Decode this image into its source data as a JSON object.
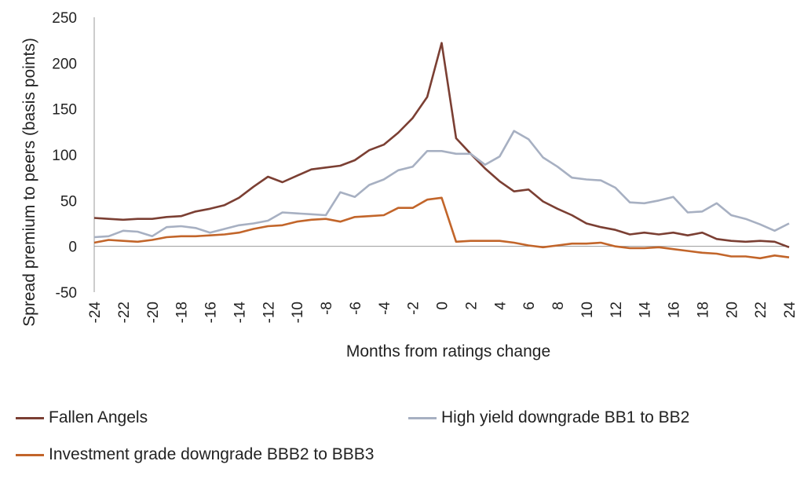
{
  "chart_data": {
    "type": "line",
    "xlabel": "Months from ratings change",
    "ylabel": "Spread premium to peers (basis points)",
    "xlim": [
      -24,
      24
    ],
    "ylim": [
      -50,
      250
    ],
    "yticks": [
      -50,
      0,
      50,
      100,
      150,
      200,
      250
    ],
    "xticks": [
      -24,
      -22,
      -20,
      -18,
      -16,
      -14,
      -12,
      -10,
      -8,
      -6,
      -4,
      -2,
      0,
      2,
      4,
      6,
      8,
      10,
      12,
      14,
      16,
      18,
      20,
      22,
      24
    ],
    "grid": false,
    "legend_position": "bottom",
    "x": [
      -24,
      -23,
      -22,
      -21,
      -20,
      -19,
      -18,
      -17,
      -16,
      -15,
      -14,
      -13,
      -12,
      -11,
      -10,
      -9,
      -8,
      -7,
      -6,
      -5,
      -4,
      -3,
      -2,
      -1,
      0,
      1,
      2,
      3,
      4,
      5,
      6,
      7,
      8,
      9,
      10,
      11,
      12,
      13,
      14,
      15,
      16,
      17,
      18,
      19,
      20,
      21,
      22,
      23,
      24
    ],
    "series": [
      {
        "name": "Fallen Angels",
        "color": "#7b3f33",
        "values": [
          31,
          30,
          29,
          30,
          30,
          32,
          33,
          38,
          41,
          45,
          53,
          65,
          76,
          70,
          77,
          84,
          86,
          88,
          94,
          105,
          111,
          124,
          140,
          163,
          222,
          118,
          101,
          85,
          71,
          60,
          62,
          49,
          41,
          34,
          25,
          21,
          18,
          13,
          15,
          13,
          15,
          12,
          15,
          8,
          6,
          5,
          6,
          5,
          -1
        ]
      },
      {
        "name": "High yield downgrade BB1 to BB2",
        "color": "#a7b0c2",
        "values": [
          10,
          11,
          17,
          16,
          11,
          21,
          22,
          20,
          15,
          19,
          23,
          25,
          28,
          37,
          36,
          35,
          34,
          59,
          54,
          67,
          73,
          83,
          87,
          104,
          104,
          101,
          101,
          89,
          98,
          126,
          117,
          97,
          87,
          75,
          73,
          72,
          64,
          48,
          47,
          50,
          54,
          37,
          38,
          47,
          34,
          30,
          24,
          17,
          25
        ]
      },
      {
        "name": "Investment grade downgrade BBB2 to BBB3",
        "color": "#c2652a",
        "values": [
          4,
          7,
          6,
          5,
          7,
          10,
          11,
          11,
          12,
          13,
          15,
          19,
          22,
          23,
          27,
          29,
          30,
          27,
          32,
          33,
          34,
          42,
          42,
          51,
          53,
          5,
          6,
          6,
          6,
          4,
          1,
          -1,
          1,
          3,
          3,
          4,
          0,
          -2,
          -2,
          -1,
          -3,
          -5,
          -7,
          -8,
          -11,
          -11,
          -13,
          -10,
          -12
        ]
      }
    ]
  }
}
